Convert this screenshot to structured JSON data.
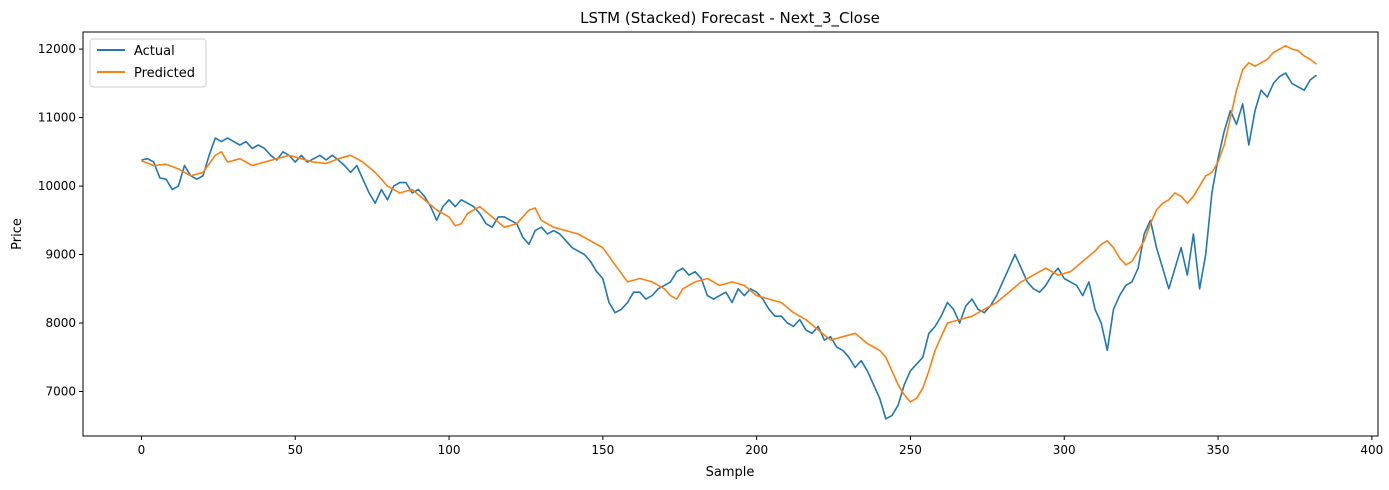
{
  "chart_data": {
    "type": "line",
    "title": "LSTM (Stacked) Forecast - Next_3_Close",
    "xlabel": "Sample",
    "ylabel": "Price",
    "xlim": [
      -19,
      402
    ],
    "ylim": [
      6350,
      12250
    ],
    "xticks": [
      0,
      50,
      100,
      150,
      200,
      250,
      300,
      350,
      400
    ],
    "yticks": [
      7000,
      8000,
      9000,
      10000,
      11000,
      12000
    ],
    "grid": false,
    "legend": "top-left",
    "series": [
      {
        "name": "Actual",
        "color": "#1f77b4",
        "points": [
          [
            0,
            10380
          ],
          [
            2,
            10400
          ],
          [
            4,
            10350
          ],
          [
            6,
            10120
          ],
          [
            8,
            10100
          ],
          [
            10,
            9950
          ],
          [
            12,
            10000
          ],
          [
            14,
            10300
          ],
          [
            16,
            10150
          ],
          [
            18,
            10100
          ],
          [
            20,
            10150
          ],
          [
            22,
            10450
          ],
          [
            24,
            10700
          ],
          [
            26,
            10650
          ],
          [
            28,
            10700
          ],
          [
            30,
            10650
          ],
          [
            32,
            10600
          ],
          [
            34,
            10650
          ],
          [
            36,
            10550
          ],
          [
            38,
            10600
          ],
          [
            40,
            10550
          ],
          [
            42,
            10450
          ],
          [
            44,
            10380
          ],
          [
            46,
            10500
          ],
          [
            48,
            10450
          ],
          [
            50,
            10350
          ],
          [
            52,
            10450
          ],
          [
            54,
            10350
          ],
          [
            56,
            10400
          ],
          [
            58,
            10450
          ],
          [
            60,
            10380
          ],
          [
            62,
            10450
          ],
          [
            64,
            10380
          ],
          [
            66,
            10300
          ],
          [
            68,
            10200
          ],
          [
            70,
            10300
          ],
          [
            72,
            10100
          ],
          [
            74,
            9900
          ],
          [
            76,
            9750
          ],
          [
            78,
            9950
          ],
          [
            80,
            9800
          ],
          [
            82,
            10000
          ],
          [
            84,
            10050
          ],
          [
            86,
            10050
          ],
          [
            88,
            9900
          ],
          [
            90,
            9950
          ],
          [
            92,
            9850
          ],
          [
            94,
            9700
          ],
          [
            96,
            9500
          ],
          [
            98,
            9700
          ],
          [
            100,
            9800
          ],
          [
            102,
            9700
          ],
          [
            104,
            9800
          ],
          [
            106,
            9750
          ],
          [
            108,
            9700
          ],
          [
            110,
            9600
          ],
          [
            112,
            9450
          ],
          [
            114,
            9400
          ],
          [
            116,
            9550
          ],
          [
            118,
            9550
          ],
          [
            120,
            9500
          ],
          [
            122,
            9450
          ],
          [
            124,
            9250
          ],
          [
            126,
            9150
          ],
          [
            128,
            9350
          ],
          [
            130,
            9400
          ],
          [
            132,
            9300
          ],
          [
            134,
            9350
          ],
          [
            136,
            9300
          ],
          [
            138,
            9200
          ],
          [
            140,
            9100
          ],
          [
            142,
            9050
          ],
          [
            144,
            9000
          ],
          [
            146,
            8900
          ],
          [
            148,
            8750
          ],
          [
            150,
            8650
          ],
          [
            152,
            8300
          ],
          [
            154,
            8150
          ],
          [
            156,
            8200
          ],
          [
            158,
            8300
          ],
          [
            160,
            8450
          ],
          [
            162,
            8450
          ],
          [
            164,
            8350
          ],
          [
            166,
            8400
          ],
          [
            168,
            8500
          ],
          [
            170,
            8550
          ],
          [
            172,
            8600
          ],
          [
            174,
            8750
          ],
          [
            176,
            8800
          ],
          [
            178,
            8700
          ],
          [
            180,
            8750
          ],
          [
            182,
            8650
          ],
          [
            184,
            8400
          ],
          [
            186,
            8350
          ],
          [
            188,
            8400
          ],
          [
            190,
            8450
          ],
          [
            192,
            8300
          ],
          [
            194,
            8500
          ],
          [
            196,
            8400
          ],
          [
            198,
            8500
          ],
          [
            200,
            8450
          ],
          [
            202,
            8350
          ],
          [
            204,
            8200
          ],
          [
            206,
            8100
          ],
          [
            208,
            8100
          ],
          [
            210,
            8000
          ],
          [
            212,
            7950
          ],
          [
            214,
            8050
          ],
          [
            216,
            7900
          ],
          [
            218,
            7850
          ],
          [
            220,
            7950
          ],
          [
            222,
            7750
          ],
          [
            224,
            7800
          ],
          [
            226,
            7650
          ],
          [
            228,
            7600
          ],
          [
            230,
            7500
          ],
          [
            232,
            7350
          ],
          [
            234,
            7450
          ],
          [
            236,
            7300
          ],
          [
            238,
            7100
          ],
          [
            240,
            6900
          ],
          [
            242,
            6600
          ],
          [
            244,
            6650
          ],
          [
            246,
            6800
          ],
          [
            248,
            7100
          ],
          [
            250,
            7300
          ],
          [
            252,
            7400
          ],
          [
            254,
            7500
          ],
          [
            256,
            7850
          ],
          [
            258,
            7950
          ],
          [
            260,
            8100
          ],
          [
            262,
            8300
          ],
          [
            264,
            8200
          ],
          [
            266,
            8000
          ],
          [
            268,
            8250
          ],
          [
            270,
            8350
          ],
          [
            272,
            8200
          ],
          [
            274,
            8150
          ],
          [
            276,
            8250
          ],
          [
            278,
            8400
          ],
          [
            280,
            8600
          ],
          [
            282,
            8800
          ],
          [
            284,
            9000
          ],
          [
            286,
            8800
          ],
          [
            288,
            8600
          ],
          [
            290,
            8500
          ],
          [
            292,
            8450
          ],
          [
            294,
            8550
          ],
          [
            296,
            8700
          ],
          [
            298,
            8800
          ],
          [
            300,
            8650
          ],
          [
            302,
            8600
          ],
          [
            304,
            8550
          ],
          [
            306,
            8400
          ],
          [
            308,
            8600
          ],
          [
            310,
            8200
          ],
          [
            312,
            8000
          ],
          [
            314,
            7600
          ],
          [
            316,
            8200
          ],
          [
            318,
            8400
          ],
          [
            320,
            8550
          ],
          [
            322,
            8600
          ],
          [
            324,
            8800
          ],
          [
            326,
            9300
          ],
          [
            328,
            9500
          ],
          [
            330,
            9100
          ],
          [
            332,
            8800
          ],
          [
            334,
            8500
          ],
          [
            336,
            8800
          ],
          [
            338,
            9100
          ],
          [
            340,
            8700
          ],
          [
            342,
            9300
          ],
          [
            344,
            8500
          ],
          [
            346,
            9000
          ],
          [
            348,
            9900
          ],
          [
            350,
            10400
          ],
          [
            352,
            10800
          ],
          [
            354,
            11100
          ],
          [
            356,
            10900
          ],
          [
            358,
            11200
          ],
          [
            360,
            10600
          ],
          [
            362,
            11100
          ],
          [
            364,
            11400
          ],
          [
            366,
            11300
          ],
          [
            368,
            11500
          ],
          [
            370,
            11600
          ],
          [
            372,
            11650
          ],
          [
            374,
            11500
          ],
          [
            376,
            11450
          ],
          [
            378,
            11400
          ],
          [
            380,
            11550
          ],
          [
            382,
            11620
          ]
        ]
      },
      {
        "name": "Predicted",
        "color": "#ff7f0e",
        "points": [
          [
            0,
            10370
          ],
          [
            4,
            10300
          ],
          [
            8,
            10320
          ],
          [
            12,
            10250
          ],
          [
            16,
            10150
          ],
          [
            20,
            10200
          ],
          [
            24,
            10450
          ],
          [
            26,
            10500
          ],
          [
            28,
            10350
          ],
          [
            32,
            10400
          ],
          [
            36,
            10300
          ],
          [
            40,
            10350
          ],
          [
            44,
            10400
          ],
          [
            48,
            10450
          ],
          [
            52,
            10400
          ],
          [
            56,
            10350
          ],
          [
            60,
            10330
          ],
          [
            64,
            10400
          ],
          [
            68,
            10450
          ],
          [
            72,
            10350
          ],
          [
            76,
            10200
          ],
          [
            80,
            10000
          ],
          [
            84,
            9900
          ],
          [
            88,
            9950
          ],
          [
            92,
            9800
          ],
          [
            96,
            9650
          ],
          [
            100,
            9550
          ],
          [
            102,
            9420
          ],
          [
            104,
            9450
          ],
          [
            106,
            9600
          ],
          [
            110,
            9700
          ],
          [
            114,
            9550
          ],
          [
            118,
            9400
          ],
          [
            122,
            9450
          ],
          [
            126,
            9650
          ],
          [
            128,
            9680
          ],
          [
            130,
            9500
          ],
          [
            134,
            9400
          ],
          [
            138,
            9350
          ],
          [
            142,
            9300
          ],
          [
            146,
            9200
          ],
          [
            150,
            9100
          ],
          [
            154,
            8850
          ],
          [
            158,
            8600
          ],
          [
            162,
            8650
          ],
          [
            166,
            8600
          ],
          [
            170,
            8500
          ],
          [
            172,
            8400
          ],
          [
            174,
            8350
          ],
          [
            176,
            8500
          ],
          [
            180,
            8600
          ],
          [
            184,
            8650
          ],
          [
            188,
            8550
          ],
          [
            192,
            8600
          ],
          [
            196,
            8550
          ],
          [
            200,
            8400
          ],
          [
            204,
            8350
          ],
          [
            208,
            8300
          ],
          [
            212,
            8150
          ],
          [
            216,
            8050
          ],
          [
            220,
            7900
          ],
          [
            224,
            7750
          ],
          [
            228,
            7800
          ],
          [
            232,
            7850
          ],
          [
            236,
            7700
          ],
          [
            238,
            7650
          ],
          [
            240,
            7600
          ],
          [
            242,
            7500
          ],
          [
            246,
            7100
          ],
          [
            248,
            6950
          ],
          [
            250,
            6850
          ],
          [
            252,
            6900
          ],
          [
            254,
            7050
          ],
          [
            256,
            7300
          ],
          [
            258,
            7600
          ],
          [
            260,
            7800
          ],
          [
            262,
            8000
          ],
          [
            266,
            8050
          ],
          [
            270,
            8100
          ],
          [
            274,
            8200
          ],
          [
            278,
            8300
          ],
          [
            282,
            8450
          ],
          [
            286,
            8600
          ],
          [
            290,
            8700
          ],
          [
            294,
            8800
          ],
          [
            298,
            8700
          ],
          [
            302,
            8750
          ],
          [
            306,
            8900
          ],
          [
            310,
            9050
          ],
          [
            312,
            9150
          ],
          [
            314,
            9200
          ],
          [
            316,
            9100
          ],
          [
            318,
            8950
          ],
          [
            320,
            8850
          ],
          [
            322,
            8900
          ],
          [
            326,
            9200
          ],
          [
            328,
            9450
          ],
          [
            330,
            9650
          ],
          [
            332,
            9750
          ],
          [
            334,
            9800
          ],
          [
            336,
            9900
          ],
          [
            338,
            9850
          ],
          [
            340,
            9750
          ],
          [
            342,
            9850
          ],
          [
            344,
            10000
          ],
          [
            346,
            10150
          ],
          [
            348,
            10200
          ],
          [
            350,
            10350
          ],
          [
            352,
            10600
          ],
          [
            354,
            11000
          ],
          [
            356,
            11400
          ],
          [
            358,
            11700
          ],
          [
            360,
            11800
          ],
          [
            362,
            11750
          ],
          [
            364,
            11800
          ],
          [
            366,
            11850
          ],
          [
            368,
            11950
          ],
          [
            370,
            12000
          ],
          [
            372,
            12050
          ],
          [
            374,
            12000
          ],
          [
            376,
            11980
          ],
          [
            378,
            11900
          ],
          [
            380,
            11850
          ],
          [
            382,
            11780
          ]
        ]
      }
    ]
  }
}
